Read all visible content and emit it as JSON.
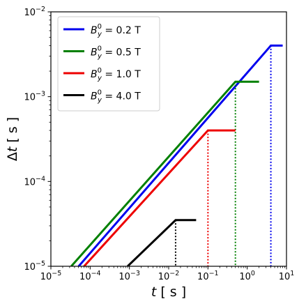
{
  "chart_data": {
    "type": "line",
    "xscale": "log",
    "yscale": "log",
    "xlim": [
      1e-05,
      10
    ],
    "ylim": [
      1e-05,
      0.01
    ],
    "xlabel": {
      "italic": "t",
      "unit": "[ s ]"
    },
    "ylabel": {
      "prefix": "Δ",
      "italic": "t",
      "unit": "[ s ]"
    },
    "legend_placement": "top-left",
    "grid": false,
    "x_ticks": [
      {
        "value": 1e-05,
        "base": "10",
        "exp": "−5"
      },
      {
        "value": 0.0001,
        "base": "10",
        "exp": "−4"
      },
      {
        "value": 0.001,
        "base": "10",
        "exp": "−3"
      },
      {
        "value": 0.01,
        "base": "10",
        "exp": "−2"
      },
      {
        "value": 0.1,
        "base": "10",
        "exp": "−1"
      },
      {
        "value": 1,
        "base": "10",
        "exp": "0"
      },
      {
        "value": 10,
        "base": "10",
        "exp": "1"
      }
    ],
    "y_ticks": [
      {
        "value": 1e-05,
        "base": "10",
        "exp": "−5"
      },
      {
        "value": 0.0001,
        "base": "10",
        "exp": "−4"
      },
      {
        "value": 0.001,
        "base": "10",
        "exp": "−3"
      },
      {
        "value": 0.01,
        "base": "10",
        "exp": "−2"
      }
    ],
    "series": [
      {
        "name": "B_y^0 = 0.2 T",
        "label": {
          "var": "B",
          "sub": "y",
          "sup": "0",
          "rest": " = 0.2 T"
        },
        "color": "#0000ee",
        "points": [
          [
            5.1e-05,
            1e-05
          ],
          [
            4.0,
            0.004
          ],
          [
            8.0,
            0.004
          ]
        ],
        "drop": {
          "x": 4.0,
          "y_top": 0.004
        }
      },
      {
        "name": "B_y^0 = 0.5 T",
        "label": {
          "var": "B",
          "sub": "y",
          "sup": "0",
          "rest": " = 0.5 T"
        },
        "color": "#008000",
        "points": [
          [
            3.3e-05,
            1e-05
          ],
          [
            0.5,
            0.0015
          ],
          [
            2.0,
            0.0015
          ]
        ],
        "drop": {
          "x": 0.5,
          "y_top": 0.0015
        }
      },
      {
        "name": "B_y^0 = 1.0 T",
        "label": {
          "var": "B",
          "sub": "y",
          "sup": "0",
          "rest": " = 1.0 T"
        },
        "color": "#ee0000",
        "points": [
          [
            7e-05,
            1e-05
          ],
          [
            0.1,
            0.0004
          ],
          [
            0.5,
            0.0004
          ]
        ],
        "drop": {
          "x": 0.1,
          "y_top": 0.0004
        }
      },
      {
        "name": "B_y^0 = 4.0 T",
        "label": {
          "var": "B",
          "sub": "y",
          "sup": "0",
          "rest": " = 4.0 T"
        },
        "color": "#000000",
        "points": [
          [
            0.0009,
            1e-05
          ],
          [
            0.015,
            3.5e-05
          ],
          [
            0.05,
            3.5e-05
          ]
        ],
        "drop": {
          "x": 0.015,
          "y_top": 3.5e-05
        }
      }
    ]
  }
}
